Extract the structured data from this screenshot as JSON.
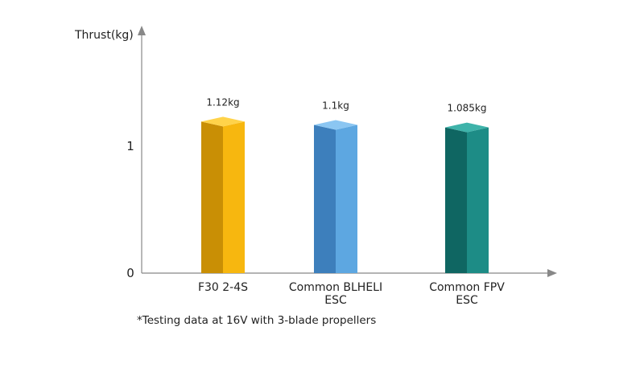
{
  "chart_data": {
    "type": "bar",
    "ylabel": "Thrust(kg)",
    "ylim": [
      0,
      2
    ],
    "yticks": [
      "0",
      "1"
    ],
    "categories": [
      [
        "F30 2-4S"
      ],
      [
        "Common BLHELI",
        "ESC"
      ],
      [
        "Common FPV",
        "ESC"
      ]
    ],
    "values": [
      1.12,
      1.1,
      1.085
    ],
    "data_labels": [
      "1.12kg",
      "1.1kg",
      "1.085kg"
    ],
    "colors": [
      {
        "front": "#F7B70F",
        "side": "#C98F05",
        "top": "#FFD34A"
      },
      {
        "front": "#5DA7E1",
        "side": "#3D7FBC",
        "top": "#8BC6F2"
      },
      {
        "front": "#1D8C86",
        "side": "#0F6662",
        "top": "#3EB3AA"
      }
    ],
    "grid": false,
    "footnote": "*Testing data at 16V with 3-blade propellers"
  }
}
